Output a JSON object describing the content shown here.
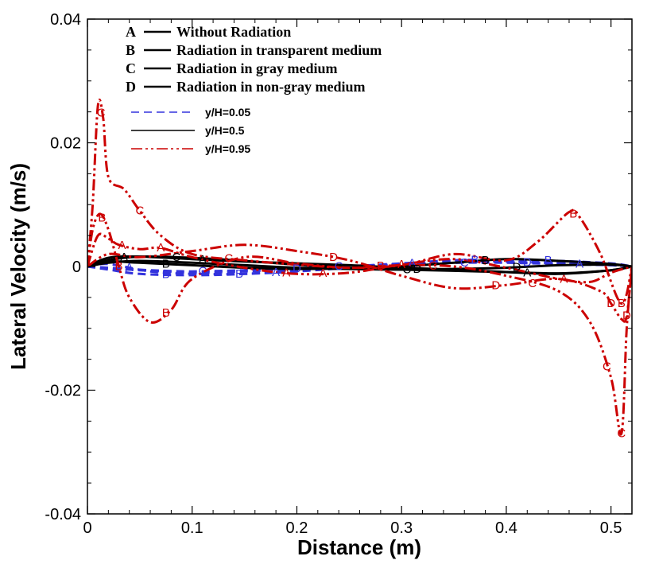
{
  "chart_data": {
    "type": "line",
    "xlabel": "Distance (m)",
    "ylabel": "Lateral Velocity (m/s)",
    "xlim": [
      0,
      0.52
    ],
    "ylim": [
      -0.04,
      0.04
    ],
    "x_ticks": [
      0,
      0.1,
      0.2,
      0.3,
      0.4,
      0.5
    ],
    "x_tick_labels": [
      "0",
      "0.1",
      "0.2",
      "0.3",
      "0.4",
      "0.5"
    ],
    "y_ticks": [
      -0.04,
      -0.02,
      0,
      0.02,
      0.04
    ],
    "y_tick_labels": [
      "-0.04",
      "-0.02",
      "0",
      "0.02",
      "0.04"
    ],
    "legend_cases": [
      {
        "letter": "A",
        "label": "Without Radiation"
      },
      {
        "letter": "B",
        "label": "Radiation in transparent medium"
      },
      {
        "letter": "C",
        "label": "Radiation in gray medium"
      },
      {
        "letter": "D",
        "label": "Radiation in non-gray medium"
      }
    ],
    "legend_styles": [
      {
        "label": "y/H=0.05",
        "color": "#3333dd",
        "dash": "10,6"
      },
      {
        "label": "y/H=0.5",
        "color": "#000000",
        "dash": ""
      },
      {
        "label": "y/H=0.95",
        "color": "#cc0000",
        "dash": "14,4,3,4,3,4"
      }
    ],
    "series": [
      {
        "name": "A y/H=0.05",
        "case": "A",
        "style": 0,
        "x": [
          0,
          0.02,
          0.06,
          0.1,
          0.15,
          0.2,
          0.25,
          0.3,
          0.35,
          0.4,
          0.45,
          0.5,
          0.52
        ],
        "y": [
          0,
          0.0004,
          -0.0008,
          -0.0012,
          -0.0012,
          -0.0008,
          -0.0002,
          0.0004,
          0.0009,
          0.0008,
          0.0005,
          0.0002,
          0
        ],
        "markers": [
          0.04,
          0.18,
          0.31,
          0.47
        ]
      },
      {
        "name": "B y/H=0.05",
        "case": "B",
        "style": 0,
        "x": [
          0,
          0.02,
          0.05,
          0.1,
          0.15,
          0.2,
          0.25,
          0.3,
          0.35,
          0.4,
          0.45,
          0.5,
          0.52
        ],
        "y": [
          0,
          -0.0005,
          -0.0012,
          -0.0014,
          -0.0012,
          -0.0006,
          0,
          0.0005,
          0.001,
          0.0011,
          0.0009,
          0.0005,
          0
        ],
        "markers": [
          0.075,
          0.145,
          0.37,
          0.44
        ]
      },
      {
        "name": "C y/H=0.05",
        "case": "C",
        "style": 0,
        "x": [
          0,
          0.02,
          0.06,
          0.1,
          0.15,
          0.2,
          0.25,
          0.3,
          0.35,
          0.4,
          0.45,
          0.5,
          0.52
        ],
        "y": [
          0,
          -0.0002,
          -0.0006,
          -0.0008,
          -0.0006,
          -0.0003,
          0.0001,
          0.0003,
          0.0006,
          0.0006,
          0.0004,
          0.0002,
          0
        ],
        "markers": [
          0.11,
          0.24,
          0.36
        ]
      },
      {
        "name": "D y/H=0.05",
        "case": "D",
        "style": 0,
        "x": [
          0,
          0.02,
          0.06,
          0.1,
          0.15,
          0.2,
          0.25,
          0.3,
          0.35,
          0.4,
          0.45,
          0.5,
          0.52
        ],
        "y": [
          0,
          -0.0003,
          -0.0007,
          -0.001,
          -0.0008,
          -0.0004,
          0,
          0.0003,
          0.0006,
          0.0007,
          0.0005,
          0.0003,
          0
        ],
        "markers": [
          0.2,
          0.42
        ]
      },
      {
        "name": "A y/H=0.5",
        "case": "A",
        "style": 1,
        "x": [
          0,
          0.02,
          0.05,
          0.1,
          0.15,
          0.2,
          0.25,
          0.3,
          0.35,
          0.4,
          0.45,
          0.5,
          0.52
        ],
        "y": [
          0,
          0.0014,
          0.0016,
          0.0012,
          0.0008,
          0.0005,
          0.0002,
          -0.0002,
          -0.0005,
          -0.0009,
          -0.0012,
          -0.0006,
          0
        ],
        "markers": [
          0.035,
          0.11,
          0.42
        ]
      },
      {
        "name": "B y/H=0.5",
        "case": "B",
        "style": 1,
        "x": [
          0,
          0.02,
          0.05,
          0.1,
          0.15,
          0.2,
          0.25,
          0.3,
          0.35,
          0.4,
          0.45,
          0.5,
          0.52
        ],
        "y": [
          0,
          0.0008,
          0.0006,
          0.0002,
          -0.0002,
          -0.0004,
          -0.0003,
          0,
          0.0006,
          0.0012,
          0.0009,
          0.0004,
          0
        ],
        "markers": [
          0.075,
          0.38
        ]
      },
      {
        "name": "C y/H=0.5",
        "case": "C",
        "style": 1,
        "x": [
          0,
          0.02,
          0.05,
          0.1,
          0.15,
          0.2,
          0.25,
          0.3,
          0.35,
          0.4,
          0.45,
          0.5,
          0.52
        ],
        "y": [
          0,
          0.001,
          0.0016,
          0.0014,
          0.0009,
          0.0003,
          -0.0002,
          -0.0005,
          -0.0007,
          -0.0009,
          -0.0011,
          -0.0006,
          0
        ],
        "markers": [
          0.085,
          0.305
        ]
      },
      {
        "name": "D y/H=0.5",
        "case": "D",
        "style": 1,
        "x": [
          0,
          0.02,
          0.05,
          0.1,
          0.15,
          0.2,
          0.25,
          0.3,
          0.35,
          0.4,
          0.45,
          0.5,
          0.52
        ],
        "y": [
          0,
          0.0006,
          0.0009,
          0.0006,
          0.0002,
          -0.0002,
          -0.0004,
          -0.0005,
          -0.0004,
          -0.0002,
          0.0002,
          0.0003,
          0
        ],
        "markers": [
          0.315,
          0.41
        ]
      },
      {
        "name": "A y/H=0.95",
        "case": "A",
        "style": 2,
        "x": [
          0,
          0.01,
          0.02,
          0.03,
          0.05,
          0.07,
          0.1,
          0.15,
          0.2,
          0.25,
          0.3,
          0.35,
          0.4,
          0.45,
          0.48,
          0.5,
          0.52
        ],
        "y": [
          0,
          0.005,
          0.0045,
          0.0035,
          0.0028,
          0.003,
          0.0015,
          -0.0002,
          -0.0012,
          -0.001,
          0.0003,
          0.0012,
          -0.0002,
          -0.002,
          -0.0025,
          -0.001,
          0
        ],
        "markers": [
          0.033,
          0.07,
          0.19,
          0.225,
          0.3,
          0.455
        ]
      },
      {
        "name": "B y/H=0.95",
        "case": "B",
        "style": 2,
        "x": [
          0,
          0.005,
          0.012,
          0.02,
          0.03,
          0.04,
          0.06,
          0.08,
          0.1,
          0.15,
          0.2,
          0.25,
          0.3,
          0.35,
          0.4,
          0.43,
          0.46,
          0.47,
          0.49,
          0.51,
          0.52
        ],
        "y": [
          0,
          0.006,
          0.0085,
          0.006,
          0,
          -0.005,
          -0.009,
          -0.007,
          -0.002,
          0.0015,
          0.0005,
          -0.0002,
          0.0002,
          0.002,
          0.001,
          0.004,
          0.0088,
          0.008,
          0.002,
          -0.006,
          0
        ],
        "markers": [
          0.014,
          0.03,
          0.075,
          0.28,
          0.464,
          0.51
        ]
      },
      {
        "name": "C y/H=0.95",
        "case": "C",
        "style": 2,
        "x": [
          0,
          0.005,
          0.01,
          0.015,
          0.02,
          0.035,
          0.05,
          0.07,
          0.1,
          0.15,
          0.2,
          0.25,
          0.3,
          0.35,
          0.4,
          0.45,
          0.48,
          0.5,
          0.51,
          0.515,
          0.52
        ],
        "y": [
          0,
          0.01,
          0.026,
          0.024,
          0.0145,
          0.0125,
          0.009,
          0.005,
          0.002,
          0.001,
          0.0003,
          -0.0002,
          0.0002,
          0,
          -0.0015,
          -0.004,
          -0.009,
          -0.018,
          -0.027,
          -0.01,
          0
        ],
        "markers": [
          0.013,
          0.05,
          0.135,
          0.33,
          0.425,
          0.496,
          0.51
        ]
      },
      {
        "name": "D y/H=0.95",
        "case": "D",
        "style": 2,
        "x": [
          0,
          0.02,
          0.05,
          0.1,
          0.15,
          0.2,
          0.25,
          0.3,
          0.35,
          0.4,
          0.45,
          0.49,
          0.5,
          0.51,
          0.515,
          0.52
        ],
        "y": [
          0,
          0.002,
          0.0015,
          0.0025,
          0.0035,
          0.0025,
          0.001,
          -0.0015,
          -0.0035,
          -0.003,
          -0.002,
          -0.004,
          -0.006,
          -0.0085,
          -0.008,
          0
        ],
        "markers": [
          0.235,
          0.39,
          0.5,
          0.515
        ]
      }
    ]
  }
}
